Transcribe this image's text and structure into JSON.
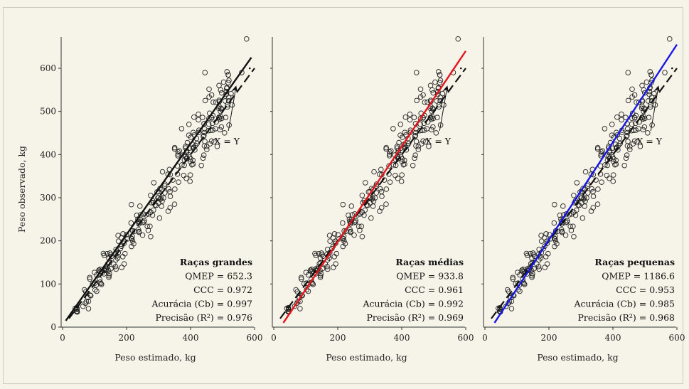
{
  "chart_data": [
    {
      "type": "scatter",
      "title": "Raças grandes",
      "xlabel": "Peso estimado, kg",
      "ylabel": "Peso observado, kg",
      "xlim": [
        0,
        600
      ],
      "ylim": [
        0,
        670
      ],
      "xticks": [
        "0",
        "200",
        "400",
        "600"
      ],
      "yticks": [
        "0",
        "100",
        "200",
        "300",
        "400",
        "500",
        "600"
      ],
      "fit_color": "#111111",
      "fit_line": [
        [
          10,
          15
        ],
        [
          590,
          625
        ]
      ],
      "identity_line": [
        [
          20,
          20
        ],
        [
          600,
          600
        ]
      ],
      "annotation": "X = Y",
      "stats": [
        "QMEP = 652.3",
        "CCC = 0.972",
        "Acurácia (Cb) = 0.997",
        "Precisão (R²) = 0.976"
      ],
      "stats_label": "Raças grandes"
    },
    {
      "type": "scatter",
      "title": "Raças médias",
      "xlabel": "Peso estimado, kg",
      "xlim": [
        0,
        600
      ],
      "ylim": [
        0,
        670
      ],
      "xticks": [
        "0",
        "200",
        "400",
        "600"
      ],
      "fit_color": "#e8121b",
      "fit_line": [
        [
          30,
          10
        ],
        [
          600,
          640
        ]
      ],
      "identity_line": [
        [
          20,
          20
        ],
        [
          600,
          600
        ]
      ],
      "annotation": "X = Y",
      "stats": [
        "QMEP = 933.8",
        "CCC = 0.961",
        "Acurácia (Cb) = 0.992",
        "Precisão (R²) = 0.969"
      ],
      "stats_label": "Raças médias"
    },
    {
      "type": "scatter",
      "title": "Raças pequenas",
      "xlabel": "Peso estimado, kg",
      "xlim": [
        0,
        600
      ],
      "ylim": [
        0,
        670
      ],
      "xticks": [
        "0",
        "200",
        "400",
        "600"
      ],
      "fit_color": "#1616e8",
      "fit_line": [
        [
          30,
          10
        ],
        [
          600,
          655
        ]
      ],
      "identity_line": [
        [
          20,
          20
        ],
        [
          600,
          600
        ]
      ],
      "annotation": "X = Y",
      "stats": [
        "QMEP = 1186.6",
        "CCC = 0.953",
        "Acurácia (Cb) = 0.985",
        "Precisão (R²) = 0.968"
      ],
      "stats_label": "Raças pequenas"
    }
  ]
}
